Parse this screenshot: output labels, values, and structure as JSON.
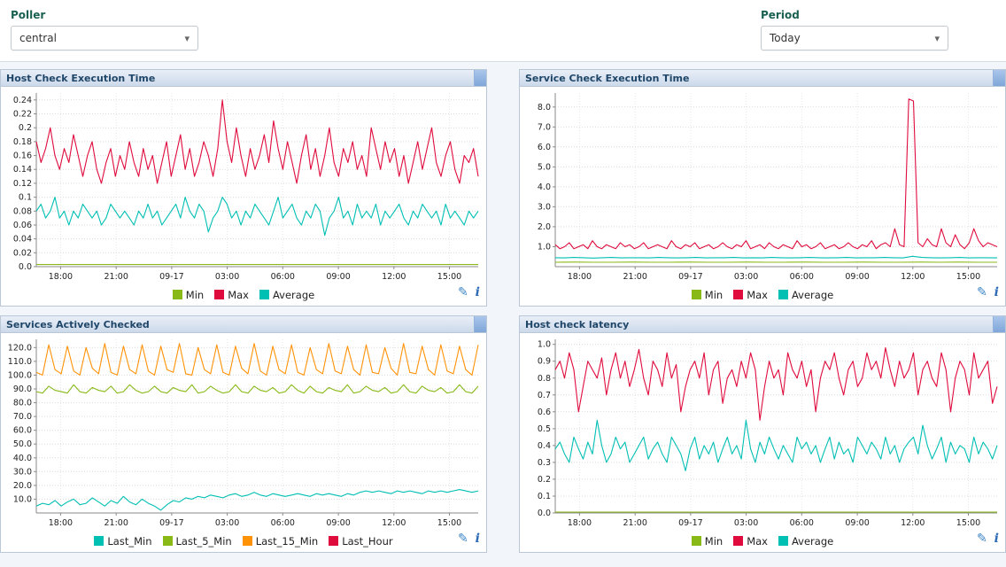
{
  "filters": {
    "poller": {
      "label": "Poller",
      "value": "central"
    },
    "period": {
      "label": "Period",
      "value": "Today"
    }
  },
  "icons": {
    "chevron": "▾",
    "edit": "✎",
    "info": "i"
  },
  "colors": {
    "min": "#88b917",
    "max": "#e00b3d",
    "average": "#00bfb3",
    "last_min": "#00bfb3",
    "last_5_min": "#88b917",
    "last_15_min": "#ff9207",
    "last_hour": "#e00b3d"
  },
  "chart_data": [
    {
      "type": "line",
      "title": "Host Check Execution Time",
      "x_ticks": [
        "18:00",
        "21:00",
        "09-17",
        "03:00",
        "06:00",
        "09:00",
        "12:00",
        "15:00"
      ],
      "x_start": 0.055,
      "x_step": 0.1257,
      "ylim": [
        0,
        0.25
      ],
      "y_ticks": [
        0,
        0.02,
        0.04,
        0.06,
        0.08,
        0.1,
        0.12,
        0.14,
        0.16,
        0.18,
        0.2,
        0.22,
        0.24
      ],
      "y_tick_labels": [
        "0.0",
        "0.02",
        "0.04",
        "0.06",
        "0.08",
        "0.1",
        "0.12",
        "0.14",
        "0.16",
        "0.18",
        "0.2",
        "0.22",
        "0.24"
      ],
      "grid": true,
      "legend_position": "bottom",
      "series": [
        {
          "name": "Min",
          "color": "min",
          "values": [
            0.003,
            0.003
          ]
        },
        {
          "name": "Max",
          "color": "max",
          "values": [
            0.18,
            0.15,
            0.17,
            0.2,
            0.16,
            0.14,
            0.17,
            0.15,
            0.19,
            0.16,
            0.13,
            0.16,
            0.18,
            0.14,
            0.12,
            0.15,
            0.17,
            0.13,
            0.16,
            0.14,
            0.18,
            0.15,
            0.13,
            0.17,
            0.14,
            0.16,
            0.12,
            0.15,
            0.18,
            0.13,
            0.16,
            0.19,
            0.14,
            0.17,
            0.13,
            0.15,
            0.18,
            0.16,
            0.13,
            0.17,
            0.24,
            0.18,
            0.15,
            0.2,
            0.16,
            0.13,
            0.17,
            0.14,
            0.16,
            0.19,
            0.15,
            0.21,
            0.17,
            0.14,
            0.18,
            0.15,
            0.12,
            0.16,
            0.19,
            0.14,
            0.17,
            0.13,
            0.16,
            0.2,
            0.15,
            0.13,
            0.17,
            0.15,
            0.18,
            0.14,
            0.16,
            0.13,
            0.2,
            0.17,
            0.14,
            0.18,
            0.15,
            0.17,
            0.13,
            0.16,
            0.12,
            0.15,
            0.18,
            0.14,
            0.17,
            0.2,
            0.15,
            0.13,
            0.16,
            0.18,
            0.14,
            0.12,
            0.16,
            0.15,
            0.17,
            0.13
          ]
        },
        {
          "name": "Average",
          "color": "average",
          "values": [
            0.08,
            0.09,
            0.07,
            0.08,
            0.1,
            0.07,
            0.08,
            0.06,
            0.08,
            0.07,
            0.09,
            0.08,
            0.07,
            0.08,
            0.06,
            0.07,
            0.09,
            0.08,
            0.07,
            0.08,
            0.07,
            0.06,
            0.08,
            0.07,
            0.09,
            0.07,
            0.08,
            0.06,
            0.07,
            0.08,
            0.09,
            0.07,
            0.1,
            0.08,
            0.07,
            0.09,
            0.08,
            0.05,
            0.07,
            0.08,
            0.1,
            0.09,
            0.07,
            0.08,
            0.06,
            0.08,
            0.07,
            0.09,
            0.08,
            0.07,
            0.06,
            0.08,
            0.1,
            0.07,
            0.08,
            0.09,
            0.07,
            0.06,
            0.08,
            0.07,
            0.09,
            0.08,
            0.045,
            0.07,
            0.08,
            0.1,
            0.07,
            0.08,
            0.06,
            0.09,
            0.07,
            0.08,
            0.07,
            0.09,
            0.06,
            0.08,
            0.07,
            0.08,
            0.09,
            0.07,
            0.06,
            0.08,
            0.07,
            0.09,
            0.08,
            0.07,
            0.08,
            0.06,
            0.09,
            0.07,
            0.08,
            0.07,
            0.06,
            0.08,
            0.07,
            0.08
          ]
        }
      ]
    },
    {
      "type": "line",
      "title": "Service Check Execution Time",
      "x_ticks": [
        "18:00",
        "21:00",
        "09-17",
        "03:00",
        "06:00",
        "09:00",
        "12:00",
        "15:00"
      ],
      "x_start": 0.055,
      "x_step": 0.1257,
      "ylim": [
        0,
        8.7
      ],
      "y_ticks": [
        1,
        2,
        3,
        4,
        5,
        6,
        7,
        8
      ],
      "y_tick_labels": [
        "1.0",
        "2.0",
        "3.0",
        "4.0",
        "5.0",
        "6.0",
        "7.0",
        "8.0"
      ],
      "grid": true,
      "legend_position": "bottom",
      "series": [
        {
          "name": "Min",
          "color": "min",
          "values": [
            0.22,
            0.23,
            0.22,
            0.22,
            0.23,
            0.22,
            0.22,
            0.23,
            0.22,
            0.22,
            0.23,
            0.22,
            0.22,
            0.23,
            0.22,
            0.22,
            0.23,
            0.22,
            0.22,
            0.23,
            0.22,
            0.23,
            0.22,
            0.22
          ]
        },
        {
          "name": "Max",
          "color": "max",
          "values": [
            1.1,
            0.9,
            1,
            1.2,
            0.9,
            1,
            1.1,
            0.9,
            1.3,
            1,
            0.9,
            1.1,
            1,
            0.9,
            1.2,
            1,
            1.1,
            0.9,
            1,
            1.2,
            0.9,
            1,
            1.1,
            1,
            0.9,
            1.3,
            1,
            0.9,
            1.1,
            1,
            1.2,
            0.9,
            1,
            1.1,
            0.9,
            1,
            1.2,
            1,
            0.9,
            1.1,
            1,
            1.3,
            0.9,
            1,
            1.1,
            0.9,
            1.2,
            1,
            0.9,
            1.1,
            1,
            0.9,
            1.3,
            1,
            1.1,
            0.9,
            1,
            1.2,
            0.9,
            1,
            1.1,
            0.9,
            1,
            1.2,
            1,
            0.9,
            1.1,
            1,
            1.3,
            0.9,
            1.1,
            1.2,
            1,
            1.9,
            1.1,
            1,
            8.4,
            8.3,
            1.2,
            1,
            1.4,
            1.1,
            1,
            1.9,
            1.2,
            1,
            1.6,
            1.1,
            0.9,
            1.2,
            1.9,
            1.3,
            1,
            1.2,
            1.1,
            1
          ]
        },
        {
          "name": "Average",
          "color": "average",
          "values": [
            0.45,
            0.44,
            0.46,
            0.45,
            0.43,
            0.45,
            0.46,
            0.44,
            0.45,
            0.45,
            0.44,
            0.46,
            0.45,
            0.44,
            0.45,
            0.46,
            0.44,
            0.45,
            0.45,
            0.46,
            0.44,
            0.45,
            0.44,
            0.46,
            0.45,
            0.44,
            0.45,
            0.46,
            0.45,
            0.44,
            0.45,
            0.46,
            0.44,
            0.45,
            0.45,
            0.46,
            0.45,
            0.44,
            0.52,
            0.46,
            0.45,
            0.44,
            0.45,
            0.46,
            0.44,
            0.45,
            0.45,
            0.44
          ]
        }
      ]
    },
    {
      "type": "line",
      "title": "Services Actively Checked",
      "x_ticks": [
        "18:00",
        "21:00",
        "09-17",
        "03:00",
        "06:00",
        "09:00",
        "12:00",
        "15:00"
      ],
      "x_start": 0.055,
      "x_step": 0.1257,
      "ylim": [
        0,
        126
      ],
      "y_ticks": [
        10,
        20,
        30,
        40,
        50,
        60,
        70,
        80,
        90,
        100,
        110,
        120
      ],
      "y_tick_labels": [
        "10.0",
        "20.0",
        "30.0",
        "40.0",
        "50.0",
        "60.0",
        "70.0",
        "80.0",
        "90.0",
        "100.0",
        "110.0",
        "120.0"
      ],
      "grid": true,
      "legend_position": "bottom",
      "series": [
        {
          "name": "Last_Min",
          "color": "last_min",
          "values": [
            5,
            7,
            6,
            9,
            5,
            8,
            10,
            6,
            7,
            11,
            8,
            5,
            9,
            7,
            12,
            8,
            6,
            10,
            7,
            5,
            2,
            6,
            9,
            8,
            11,
            10,
            12,
            11,
            13,
            12,
            11,
            13,
            14,
            12,
            13,
            15,
            13,
            12,
            14,
            13,
            12,
            13,
            14,
            13,
            12,
            14,
            13,
            14,
            13,
            12,
            14,
            13,
            15,
            16,
            15,
            16,
            15,
            14,
            16,
            15,
            16,
            15,
            14,
            16,
            15,
            16,
            15,
            16,
            17,
            16,
            15,
            16
          ]
        },
        {
          "name": "Last_5_Min",
          "color": "last_5_min",
          "values": [
            88,
            87,
            92,
            89,
            88,
            87,
            93,
            88,
            87,
            91,
            89,
            88,
            92,
            87,
            88,
            93,
            89,
            87,
            88,
            92,
            88,
            87,
            91,
            89,
            88,
            93,
            87,
            88,
            92,
            89,
            87,
            88,
            93,
            88,
            87,
            92,
            89,
            88,
            91,
            87,
            88,
            93,
            89,
            87,
            92,
            88,
            87,
            91,
            89,
            88,
            93,
            87,
            88,
            92,
            89,
            88,
            91,
            87,
            88,
            93,
            88,
            87,
            92,
            89,
            88,
            91,
            87,
            88,
            93,
            88,
            87,
            92
          ]
        },
        {
          "name": "Last_15_Min",
          "color": "last_15_min",
          "values": [
            102,
            100,
            122,
            104,
            101,
            121,
            103,
            100,
            120,
            105,
            101,
            123,
            102,
            100,
            121,
            104,
            101,
            122,
            103,
            100,
            121,
            104,
            102,
            123,
            101,
            100,
            120,
            104,
            101,
            122,
            102,
            100,
            121,
            105,
            101,
            123,
            103,
            100,
            121,
            104,
            101,
            122,
            102,
            100,
            120,
            104,
            101,
            123,
            103,
            101,
            121,
            104,
            100,
            122,
            102,
            101,
            120,
            105,
            100,
            123,
            102,
            101,
            121,
            104,
            100,
            122,
            103,
            101,
            121,
            104,
            100,
            122
          ]
        },
        {
          "name": "Last_Hour",
          "color": "last_hour",
          "values": []
        }
      ]
    },
    {
      "type": "line",
      "title": "Host check latency",
      "x_ticks": [
        "18:00",
        "21:00",
        "09-17",
        "03:00",
        "06:00",
        "09:00",
        "12:00",
        "15:00"
      ],
      "x_start": 0.055,
      "x_step": 0.1257,
      "ylim": [
        0,
        1.03
      ],
      "y_ticks": [
        0,
        0.1,
        0.2,
        0.3,
        0.4,
        0.5,
        0.6,
        0.7,
        0.8,
        0.9,
        1.0
      ],
      "y_tick_labels": [
        "0.0",
        "0.1",
        "0.2",
        "0.3",
        "0.4",
        "0.5",
        "0.6",
        "0.7",
        "0.8",
        "0.9",
        "1.0"
      ],
      "grid": true,
      "legend_position": "bottom",
      "series": [
        {
          "name": "Min",
          "color": "min",
          "values": [
            0.005,
            0.005
          ]
        },
        {
          "name": "Max",
          "color": "max",
          "values": [
            0.85,
            0.9,
            0.8,
            0.95,
            0.85,
            0.6,
            0.75,
            0.9,
            0.85,
            0.8,
            0.92,
            0.7,
            0.85,
            0.95,
            0.8,
            0.9,
            0.75,
            0.85,
            0.97,
            0.8,
            0.7,
            0.9,
            0.85,
            0.75,
            0.95,
            0.8,
            0.88,
            0.6,
            0.75,
            0.85,
            0.9,
            0.8,
            0.95,
            0.7,
            0.85,
            0.9,
            0.65,
            0.8,
            0.85,
            0.75,
            0.9,
            0.8,
            0.95,
            0.85,
            0.55,
            0.75,
            0.9,
            0.8,
            0.85,
            0.7,
            0.95,
            0.85,
            0.8,
            0.9,
            0.75,
            0.85,
            0.6,
            0.8,
            0.9,
            0.85,
            0.95,
            0.8,
            0.7,
            0.85,
            0.9,
            0.75,
            0.8,
            0.95,
            0.85,
            0.9,
            0.8,
            0.98,
            0.85,
            0.75,
            0.9,
            0.8,
            0.85,
            0.95,
            0.7,
            0.85,
            0.9,
            0.8,
            0.75,
            0.95,
            0.85,
            0.6,
            0.8,
            0.9,
            0.85,
            0.7,
            0.95,
            0.8,
            0.85,
            0.9,
            0.65,
            0.75
          ]
        },
        {
          "name": "Average",
          "color": "average",
          "values": [
            0.38,
            0.42,
            0.35,
            0.3,
            0.45,
            0.38,
            0.32,
            0.42,
            0.35,
            0.55,
            0.4,
            0.3,
            0.35,
            0.45,
            0.38,
            0.42,
            0.3,
            0.35,
            0.4,
            0.45,
            0.32,
            0.38,
            0.42,
            0.35,
            0.3,
            0.45,
            0.4,
            0.35,
            0.25,
            0.38,
            0.45,
            0.32,
            0.4,
            0.35,
            0.42,
            0.3,
            0.38,
            0.45,
            0.35,
            0.4,
            0.32,
            0.55,
            0.38,
            0.3,
            0.42,
            0.35,
            0.45,
            0.38,
            0.32,
            0.4,
            0.35,
            0.3,
            0.45,
            0.38,
            0.42,
            0.35,
            0.4,
            0.3,
            0.38,
            0.45,
            0.32,
            0.42,
            0.35,
            0.38,
            0.3,
            0.45,
            0.4,
            0.35,
            0.42,
            0.38,
            0.32,
            0.45,
            0.35,
            0.4,
            0.3,
            0.38,
            0.42,
            0.45,
            0.35,
            0.52,
            0.4,
            0.32,
            0.38,
            0.45,
            0.3,
            0.42,
            0.35,
            0.4,
            0.38,
            0.3,
            0.45,
            0.35,
            0.42,
            0.38,
            0.32,
            0.4
          ]
        }
      ]
    }
  ]
}
